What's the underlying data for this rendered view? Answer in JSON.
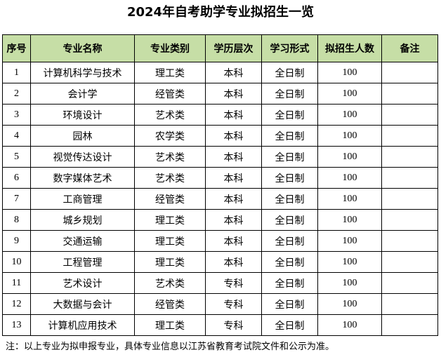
{
  "title": "2024年自考助学专业拟招生一览",
  "headers": [
    "序号",
    "专业名称",
    "专业类别",
    "学历层次",
    "学习形式",
    "拟招生人数",
    "备注"
  ],
  "rows": [
    [
      "1",
      "计算机科学与技术",
      "理工类",
      "本科",
      "全日制",
      "100",
      ""
    ],
    [
      "2",
      "会计学",
      "经管类",
      "本科",
      "全日制",
      "100",
      ""
    ],
    [
      "3",
      "环境设计",
      "艺术类",
      "本科",
      "全日制",
      "100",
      ""
    ],
    [
      "4",
      "园林",
      "农学类",
      "本科",
      "全日制",
      "100",
      ""
    ],
    [
      "5",
      "视觉传达设计",
      "艺术类",
      "本科",
      "全日制",
      "100",
      ""
    ],
    [
      "6",
      "数字媒体艺术",
      "艺术类",
      "本科",
      "全日制",
      "100",
      ""
    ],
    [
      "7",
      "工商管理",
      "经管类",
      "本科",
      "全日制",
      "100",
      ""
    ],
    [
      "8",
      "城乡规划",
      "理工类",
      "本科",
      "全日制",
      "100",
      ""
    ],
    [
      "9",
      "交通运输",
      "理工类",
      "本科",
      "全日制",
      "100",
      ""
    ],
    [
      "10",
      "工程管理",
      "理工类",
      "本科",
      "全日制",
      "100",
      ""
    ],
    [
      "11",
      "艺术设计",
      "艺术类",
      "专科",
      "全日制",
      "100",
      ""
    ],
    [
      "12",
      "大数据与会计",
      "经管类",
      "专科",
      "全日制",
      "100",
      ""
    ],
    [
      "13",
      "计算机应用技术",
      "理工类",
      "专科",
      "全日制",
      "100",
      ""
    ]
  ],
  "note": "注：以上专业为拟申报专业，具体专业信息以江苏省教育考试院文件和公示为准。",
  "colors": {
    "header_bg": "#c6dea6",
    "border": "#000000"
  }
}
